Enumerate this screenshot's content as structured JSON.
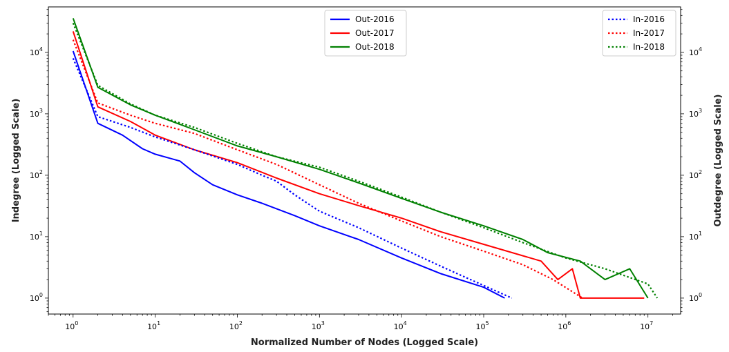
{
  "chart_data": {
    "type": "line",
    "xlabel": "Normalized Number of Nodes (Logged Scale)",
    "ylabel_left": "Indegree (Logged Scale)",
    "ylabel_right": "Outdegree (Logged Scale)",
    "x_scale": "log",
    "y_scale": "log",
    "xlim": [
      0.5,
      25000000
    ],
    "ylim": [
      0.55,
      55000
    ],
    "x_ticks": [
      1,
      10,
      100,
      1000,
      10000,
      100000,
      1000000,
      10000000
    ],
    "y_ticks": [
      1,
      10,
      100,
      1000,
      10000
    ],
    "grid": false,
    "legends": [
      {
        "placement": "top-center",
        "entries": [
          "Out-2016",
          "Out-2017",
          "Out-2018"
        ]
      },
      {
        "placement": "top-right",
        "entries": [
          "In-2016",
          "In-2017",
          "In-2018"
        ]
      }
    ],
    "series": [
      {
        "name": "Out-2016",
        "style": "solid",
        "color": "#0000ff",
        "x": [
          1,
          2,
          4,
          7,
          10,
          20,
          30,
          50,
          100,
          200,
          500,
          1000,
          3000,
          10000,
          30000,
          100000,
          180000
        ],
        "y": [
          10500,
          700,
          450,
          270,
          220,
          170,
          110,
          70,
          48,
          35,
          22,
          15,
          9,
          4.5,
          2.5,
          1.5,
          1
        ]
      },
      {
        "name": "Out-2017",
        "style": "solid",
        "color": "#ff0000",
        "x": [
          1,
          2,
          5,
          10,
          30,
          100,
          300,
          1000,
          3000,
          10000,
          30000,
          100000,
          500000,
          800000,
          1200000,
          2000000,
          3000000,
          4000000,
          6000000,
          9000000,
          1500000
        ],
        "y": [
          22000,
          1300,
          750,
          450,
          260,
          160,
          90,
          50,
          32,
          20,
          12,
          7.5,
          4,
          2,
          3,
          1,
          1,
          1,
          1,
          1,
          1
        ]
      },
      {
        "name": "Out-2018",
        "style": "solid",
        "color": "#008000",
        "x": [
          1,
          2,
          5,
          10,
          30,
          100,
          300,
          1000,
          3000,
          10000,
          30000,
          100000,
          300000,
          600000,
          1500000,
          3000000,
          6000000,
          10000000
        ],
        "y": [
          36000,
          2700,
          1400,
          950,
          550,
          300,
          200,
          125,
          75,
          42,
          25,
          15,
          9,
          5.5,
          4,
          2,
          3,
          1
        ]
      },
      {
        "name": "In-2016",
        "style": "dotted",
        "color": "#0000ff",
        "x": [
          1,
          2,
          5,
          10,
          30,
          100,
          200,
          300,
          500,
          1000,
          3000,
          10000,
          30000,
          100000,
          220000
        ],
        "y": [
          8000,
          900,
          600,
          420,
          260,
          150,
          100,
          80,
          48,
          26,
          14,
          6.5,
          3.3,
          1.6,
          1
        ]
      },
      {
        "name": "In-2017",
        "style": "dotted",
        "color": "#ff0000",
        "x": [
          1,
          2,
          5,
          10,
          30,
          100,
          300,
          1000,
          3000,
          10000,
          30000,
          100000,
          300000,
          700000,
          1600000
        ],
        "y": [
          16000,
          1500,
          950,
          700,
          480,
          260,
          150,
          70,
          35,
          18,
          10,
          5.8,
          3.5,
          2,
          1
        ]
      },
      {
        "name": "In-2018",
        "style": "dotted",
        "color": "#008000",
        "x": [
          1,
          2,
          5,
          10,
          30,
          100,
          300,
          1000,
          3000,
          10000,
          30000,
          100000,
          300000,
          1000000,
          3000000,
          10000000,
          13000000
        ],
        "y": [
          30000,
          2900,
          1450,
          950,
          600,
          330,
          200,
          135,
          80,
          44,
          25,
          14,
          8,
          4.5,
          3,
          1.7,
          1
        ]
      }
    ]
  }
}
